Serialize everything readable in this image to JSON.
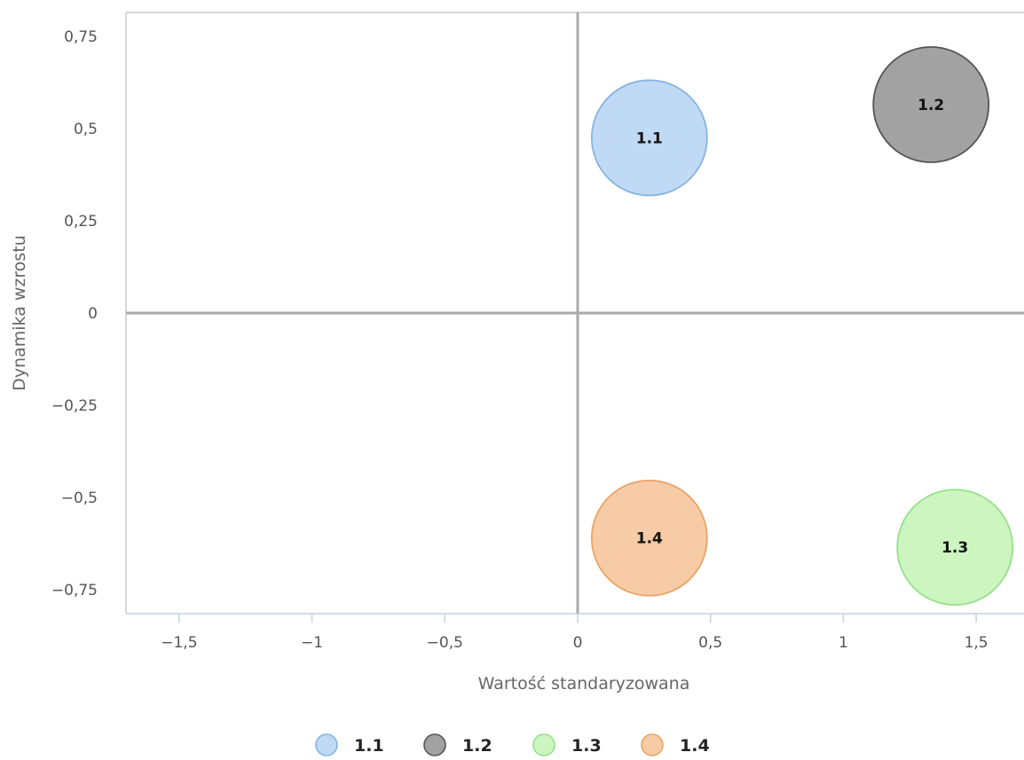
{
  "chart_data": {
    "type": "bubble",
    "xlabel": "Wartość standaryzowana",
    "ylabel": "Dynamika wzrostu",
    "xlim": [
      -1.7,
      1.68
    ],
    "ylim": [
      -0.815,
      0.815
    ],
    "x_ticks": [
      {
        "value": -1.5,
        "label": "−1,5"
      },
      {
        "value": -1,
        "label": "−1"
      },
      {
        "value": -0.5,
        "label": "−0,5"
      },
      {
        "value": 0,
        "label": "0"
      },
      {
        "value": 0.5,
        "label": "0,5"
      },
      {
        "value": 1,
        "label": "1"
      },
      {
        "value": 1.5,
        "label": "1,5"
      }
    ],
    "y_ticks": [
      {
        "value": 0.75,
        "label": "0,75"
      },
      {
        "value": 0.5,
        "label": "0,5"
      },
      {
        "value": 0.25,
        "label": "0,25"
      },
      {
        "value": 0,
        "label": "0"
      },
      {
        "value": -0.25,
        "label": "−0,25"
      },
      {
        "value": -0.5,
        "label": "−0,5"
      },
      {
        "value": -0.75,
        "label": "−0,75"
      }
    ],
    "series": [
      {
        "name": "1.1",
        "x": 0.27,
        "y": 0.475,
        "fill": "#c0d9f4",
        "stroke": "#86b4e2"
      },
      {
        "name": "1.2",
        "x": 1.33,
        "y": 0.565,
        "fill": "#a2a2a2",
        "stroke": "#555555"
      },
      {
        "name": "1.3",
        "x": 1.42,
        "y": -0.635,
        "fill": "#ccf5c0",
        "stroke": "#96e08a"
      },
      {
        "name": "1.4",
        "x": 0.27,
        "y": -0.61,
        "fill": "#f7cba5",
        "stroke": "#e8a466"
      }
    ],
    "legend": {
      "position": "bottom"
    },
    "grid": false
  }
}
